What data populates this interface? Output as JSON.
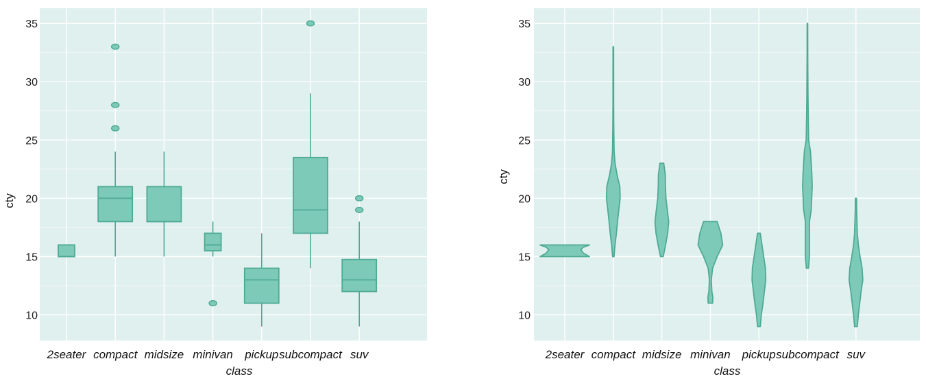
{
  "colors": {
    "panel_bg": "#e0f0ee",
    "grid": "#ffffff",
    "fill": "#7ecab8",
    "stroke": "#4daa95"
  },
  "chart_data": [
    {
      "type": "boxplot",
      "xlabel": "class",
      "ylabel": "cty",
      "ylim": [
        7.8,
        36.3
      ],
      "yticks": [
        10,
        15,
        20,
        25,
        30,
        35
      ],
      "grid": true,
      "categories": [
        "2seater",
        "compact",
        "midsize",
        "minivan",
        "pickup",
        "subcompact",
        "suv"
      ],
      "boxes": [
        {
          "category": "2seater",
          "min": 15,
          "q1": 15,
          "median": 15,
          "q3": 16,
          "max": 16,
          "outliers": []
        },
        {
          "category": "compact",
          "min": 15,
          "q1": 18,
          "median": 20,
          "q3": 21,
          "max": 24,
          "outliers": [
            26,
            28,
            33
          ]
        },
        {
          "category": "midsize",
          "min": 15,
          "q1": 18,
          "median": 18,
          "q3": 21,
          "max": 24,
          "outliers": []
        },
        {
          "category": "minivan",
          "min": 15,
          "q1": 15.5,
          "median": 16,
          "q3": 17,
          "max": 18,
          "outliers": [
            11
          ]
        },
        {
          "category": "pickup",
          "min": 9,
          "q1": 11,
          "median": 13,
          "q3": 14,
          "max": 17,
          "outliers": []
        },
        {
          "category": "subcompact",
          "min": 14,
          "q1": 17,
          "median": 19,
          "q3": 23.5,
          "max": 29,
          "outliers": [
            35
          ]
        },
        {
          "category": "suv",
          "min": 9,
          "q1": 12,
          "median": 13,
          "q3": 14.75,
          "max": 18,
          "outliers": [
            19,
            20
          ]
        }
      ]
    },
    {
      "type": "violin",
      "xlabel": "class",
      "ylabel": "cty",
      "ylim": [
        7.8,
        36.3
      ],
      "yticks": [
        10,
        15,
        20,
        25,
        30,
        35
      ],
      "grid": true,
      "categories": [
        "2seater",
        "compact",
        "midsize",
        "minivan",
        "pickup",
        "subcompact",
        "suv"
      ],
      "violins": [
        {
          "category": "2seater",
          "profile": [
            [
              15,
              1.0
            ],
            [
              15.3,
              0.75
            ],
            [
              15.6,
              0.65
            ],
            [
              15.8,
              0.75
            ],
            [
              16,
              1.0
            ]
          ]
        },
        {
          "category": "compact",
          "profile": [
            [
              15,
              0.1
            ],
            [
              16,
              0.25
            ],
            [
              17,
              0.45
            ],
            [
              18,
              0.62
            ],
            [
              19,
              0.8
            ],
            [
              20,
              1.0
            ],
            [
              21,
              0.95
            ],
            [
              22,
              0.55
            ],
            [
              23,
              0.25
            ],
            [
              24,
              0.12
            ],
            [
              26,
              0.07
            ],
            [
              28,
              0.05
            ],
            [
              33,
              0.04
            ]
          ]
        },
        {
          "category": "midsize",
          "profile": [
            [
              15,
              0.2
            ],
            [
              16,
              0.55
            ],
            [
              17,
              0.85
            ],
            [
              18,
              1.0
            ],
            [
              19,
              0.8
            ],
            [
              20,
              0.6
            ],
            [
              21,
              0.52
            ],
            [
              22,
              0.5
            ],
            [
              23,
              0.28
            ]
          ]
        },
        {
          "category": "minivan",
          "profile": [
            [
              11,
              0.18
            ],
            [
              11.5,
              0.2
            ],
            [
              12,
              0.12
            ],
            [
              13,
              0.08
            ],
            [
              14,
              0.18
            ],
            [
              15,
              0.55
            ],
            [
              16,
              1.0
            ],
            [
              17,
              0.85
            ],
            [
              17.5,
              0.7
            ],
            [
              18,
              0.55
            ]
          ]
        },
        {
          "category": "pickup",
          "profile": [
            [
              9,
              0.2
            ],
            [
              10,
              0.35
            ],
            [
              11,
              0.6
            ],
            [
              12,
              0.8
            ],
            [
              13,
              1.0
            ],
            [
              14,
              0.95
            ],
            [
              15,
              0.7
            ],
            [
              16,
              0.45
            ],
            [
              17,
              0.2
            ]
          ]
        },
        {
          "category": "subcompact",
          "profile": [
            [
              14,
              0.15
            ],
            [
              15,
              0.3
            ],
            [
              16,
              0.3
            ],
            [
              17,
              0.3
            ],
            [
              18,
              0.3
            ],
            [
              19,
              0.55
            ],
            [
              21,
              0.7
            ],
            [
              22,
              0.65
            ],
            [
              24,
              0.45
            ],
            [
              25,
              0.18
            ],
            [
              27,
              0.12
            ],
            [
              29,
              0.08
            ],
            [
              32,
              0.05
            ],
            [
              35,
              0.04
            ]
          ]
        },
        {
          "category": "suv",
          "profile": [
            [
              9,
              0.2
            ],
            [
              10,
              0.35
            ],
            [
              11,
              0.55
            ],
            [
              12,
              0.75
            ],
            [
              13,
              1.0
            ],
            [
              14,
              0.9
            ],
            [
              15,
              0.6
            ],
            [
              16,
              0.35
            ],
            [
              17,
              0.2
            ],
            [
              18,
              0.15
            ],
            [
              19,
              0.1
            ],
            [
              20,
              0.08
            ]
          ]
        }
      ]
    }
  ]
}
